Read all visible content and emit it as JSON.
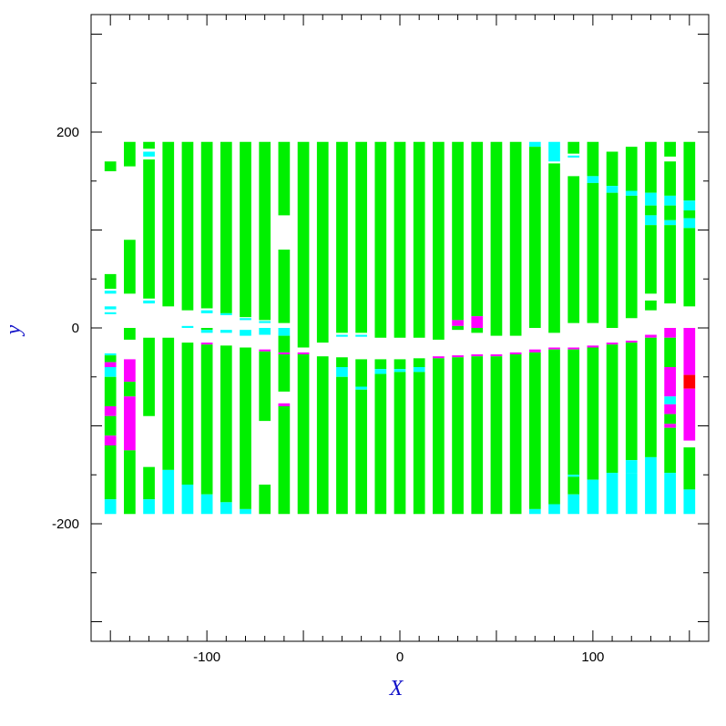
{
  "chart_data": {
    "type": "bar",
    "xlabel": "X",
    "ylabel": "y",
    "xlim": [
      -160,
      160
    ],
    "ylim": [
      -320,
      320
    ],
    "x_ticks": [
      {
        "value": -100,
        "label": "-100"
      },
      {
        "value": 0,
        "label": "0"
      },
      {
        "value": 100,
        "label": "100"
      }
    ],
    "y_ticks": [
      {
        "value": 200,
        "label": "200"
      },
      {
        "value": 0,
        "label": "0"
      },
      {
        "value": -200,
        "label": "-200"
      }
    ],
    "grid": false,
    "legend": "none",
    "colors": {
      "green": "#00f000",
      "cyan": "#00ffff",
      "magenta": "#ff00ff",
      "red": "#ff0000",
      "axis_label": "#1010c8",
      "frame": "#000000"
    },
    "column_width": 6,
    "columns": [
      {
        "x": -150,
        "segments": [
          [
            170,
            160,
            "green"
          ],
          [
            55,
            40,
            "green"
          ],
          [
            38,
            35,
            "cyan"
          ],
          [
            22,
            19,
            "cyan"
          ],
          [
            16,
            14,
            "cyan"
          ],
          [
            -26,
            -28,
            "cyan"
          ],
          [
            -28,
            -35,
            "green"
          ],
          [
            -35,
            -40,
            "magenta"
          ],
          [
            -40,
            -50,
            "cyan"
          ],
          [
            -50,
            -80,
            "green"
          ],
          [
            -80,
            -90,
            "magenta"
          ],
          [
            -90,
            -110,
            "green"
          ],
          [
            -110,
            -120,
            "magenta"
          ],
          [
            -120,
            -175,
            "green"
          ],
          [
            -175,
            -190,
            "cyan"
          ]
        ]
      },
      {
        "x": -140,
        "segments": [
          [
            190,
            165,
            "green"
          ],
          [
            90,
            35,
            "green"
          ],
          [
            0,
            -12,
            "green"
          ],
          [
            -32,
            -55,
            "magenta"
          ],
          [
            -55,
            -70,
            "green"
          ],
          [
            -70,
            -125,
            "magenta"
          ],
          [
            -125,
            -190,
            "green"
          ]
        ]
      },
      {
        "x": -130,
        "segments": [
          [
            190,
            183,
            "green"
          ],
          [
            180,
            175,
            "cyan"
          ],
          [
            172,
            30,
            "green"
          ],
          [
            28,
            25,
            "cyan"
          ],
          [
            -10,
            -90,
            "green"
          ],
          [
            -142,
            -175,
            "green"
          ],
          [
            -175,
            -190,
            "cyan"
          ]
        ]
      },
      {
        "x": -120,
        "segments": [
          [
            190,
            22,
            "green"
          ],
          [
            -10,
            -145,
            "green"
          ],
          [
            -145,
            -190,
            "cyan"
          ]
        ]
      },
      {
        "x": -110,
        "segments": [
          [
            190,
            18,
            "green"
          ],
          [
            2,
            0,
            "cyan"
          ],
          [
            -15,
            -160,
            "green"
          ],
          [
            -160,
            -190,
            "cyan"
          ]
        ]
      },
      {
        "x": -100,
        "segments": [
          [
            190,
            20,
            "green"
          ],
          [
            18,
            15,
            "cyan"
          ],
          [
            0,
            -2,
            "green"
          ],
          [
            -2,
            -5,
            "cyan"
          ],
          [
            -15,
            -17,
            "magenta"
          ],
          [
            -17,
            -170,
            "green"
          ],
          [
            -170,
            -190,
            "cyan"
          ]
        ]
      },
      {
        "x": -90,
        "segments": [
          [
            190,
            15,
            "green"
          ],
          [
            15,
            13,
            "cyan"
          ],
          [
            -2,
            -5,
            "cyan"
          ],
          [
            -18,
            -178,
            "green"
          ],
          [
            -178,
            -190,
            "cyan"
          ]
        ]
      },
      {
        "x": -80,
        "segments": [
          [
            190,
            11,
            "green"
          ],
          [
            10,
            8,
            "cyan"
          ],
          [
            -2,
            -8,
            "cyan"
          ],
          [
            -20,
            -185,
            "green"
          ],
          [
            -185,
            -190,
            "cyan"
          ]
        ]
      },
      {
        "x": -70,
        "segments": [
          [
            190,
            8,
            "green"
          ],
          [
            7,
            5,
            "cyan"
          ],
          [
            0,
            -7,
            "cyan"
          ],
          [
            -22,
            -24,
            "magenta"
          ],
          [
            -24,
            -95,
            "green"
          ],
          [
            -160,
            -190,
            "green"
          ]
        ]
      },
      {
        "x": -60,
        "segments": [
          [
            190,
            115,
            "green"
          ],
          [
            80,
            5,
            "green"
          ],
          [
            0,
            -8,
            "cyan"
          ],
          [
            -8,
            -25,
            "green"
          ],
          [
            -25,
            -27,
            "magenta"
          ],
          [
            -27,
            -65,
            "green"
          ],
          [
            -77,
            -80,
            "magenta"
          ],
          [
            -80,
            -190,
            "green"
          ]
        ]
      },
      {
        "x": -50,
        "segments": [
          [
            190,
            -20,
            "green"
          ],
          [
            -25,
            -27,
            "magenta"
          ],
          [
            -27,
            -190,
            "green"
          ]
        ]
      },
      {
        "x": -40,
        "segments": [
          [
            190,
            -15,
            "green"
          ],
          [
            -29,
            -190,
            "green"
          ]
        ]
      },
      {
        "x": -30,
        "segments": [
          [
            190,
            -5,
            "green"
          ],
          [
            -7,
            -9,
            "cyan"
          ],
          [
            -30,
            -40,
            "green"
          ],
          [
            -40,
            -50,
            "cyan"
          ],
          [
            -50,
            -190,
            "green"
          ]
        ]
      },
      {
        "x": -20,
        "segments": [
          [
            190,
            -5,
            "green"
          ],
          [
            -7,
            -9,
            "cyan"
          ],
          [
            -32,
            -60,
            "green"
          ],
          [
            -60,
            -63,
            "cyan"
          ],
          [
            -63,
            -190,
            "green"
          ]
        ]
      },
      {
        "x": -10,
        "segments": [
          [
            190,
            -10,
            "green"
          ],
          [
            -32,
            -42,
            "green"
          ],
          [
            -42,
            -47,
            "cyan"
          ],
          [
            -47,
            -190,
            "green"
          ]
        ]
      },
      {
        "x": 0,
        "segments": [
          [
            190,
            -10,
            "green"
          ],
          [
            -32,
            -42,
            "green"
          ],
          [
            -42,
            -45,
            "cyan"
          ],
          [
            -45,
            -190,
            "green"
          ]
        ]
      },
      {
        "x": 10,
        "segments": [
          [
            190,
            -10,
            "green"
          ],
          [
            -31,
            -40,
            "green"
          ],
          [
            -40,
            -45,
            "cyan"
          ],
          [
            -45,
            -190,
            "green"
          ]
        ]
      },
      {
        "x": 20,
        "segments": [
          [
            190,
            -12,
            "green"
          ],
          [
            -29,
            -31,
            "magenta"
          ],
          [
            -31,
            -190,
            "green"
          ]
        ]
      },
      {
        "x": 30,
        "segments": [
          [
            190,
            8,
            "green"
          ],
          [
            8,
            2,
            "magenta"
          ],
          [
            2,
            -2,
            "green"
          ],
          [
            -28,
            -30,
            "magenta"
          ],
          [
            -30,
            -190,
            "green"
          ]
        ]
      },
      {
        "x": 40,
        "segments": [
          [
            190,
            12,
            "green"
          ],
          [
            12,
            0,
            "magenta"
          ],
          [
            0,
            -5,
            "green"
          ],
          [
            -27,
            -29,
            "magenta"
          ],
          [
            -29,
            -190,
            "green"
          ]
        ]
      },
      {
        "x": 50,
        "segments": [
          [
            190,
            -8,
            "green"
          ],
          [
            -27,
            -29,
            "magenta"
          ],
          [
            -29,
            -190,
            "green"
          ]
        ]
      },
      {
        "x": 60,
        "segments": [
          [
            190,
            -8,
            "green"
          ],
          [
            -25,
            -27,
            "magenta"
          ],
          [
            -27,
            -190,
            "green"
          ]
        ]
      },
      {
        "x": 70,
        "segments": [
          [
            190,
            185,
            "cyan"
          ],
          [
            185,
            0,
            "green"
          ],
          [
            -22,
            -25,
            "magenta"
          ],
          [
            -25,
            -185,
            "green"
          ],
          [
            -185,
            -190,
            "cyan"
          ]
        ]
      },
      {
        "x": 80,
        "segments": [
          [
            190,
            180,
            "cyan"
          ],
          [
            180,
            170,
            "cyan"
          ],
          [
            168,
            -5,
            "green"
          ],
          [
            -20,
            -22,
            "magenta"
          ],
          [
            -22,
            -180,
            "green"
          ],
          [
            -180,
            -190,
            "cyan"
          ]
        ]
      },
      {
        "x": 90,
        "segments": [
          [
            190,
            178,
            "green"
          ],
          [
            176,
            174,
            "cyan"
          ],
          [
            155,
            5,
            "green"
          ],
          [
            -20,
            -22,
            "magenta"
          ],
          [
            -22,
            -150,
            "green"
          ],
          [
            -150,
            -152,
            "cyan"
          ],
          [
            -152,
            -170,
            "green"
          ],
          [
            -170,
            -190,
            "cyan"
          ]
        ]
      },
      {
        "x": 100,
        "segments": [
          [
            190,
            155,
            "green"
          ],
          [
            155,
            148,
            "cyan"
          ],
          [
            148,
            5,
            "green"
          ],
          [
            -18,
            -20,
            "magenta"
          ],
          [
            -20,
            -155,
            "green"
          ],
          [
            -155,
            -160,
            "cyan"
          ],
          [
            -160,
            -190,
            "cyan"
          ]
        ]
      },
      {
        "x": 110,
        "segments": [
          [
            180,
            145,
            "green"
          ],
          [
            145,
            138,
            "cyan"
          ],
          [
            138,
            0,
            "green"
          ],
          [
            -15,
            -17,
            "magenta"
          ],
          [
            -17,
            -140,
            "green"
          ],
          [
            -140,
            -148,
            "green"
          ],
          [
            -148,
            -190,
            "cyan"
          ]
        ]
      },
      {
        "x": 120,
        "segments": [
          [
            185,
            140,
            "green"
          ],
          [
            140,
            135,
            "cyan"
          ],
          [
            135,
            10,
            "green"
          ],
          [
            -13,
            -15,
            "magenta"
          ],
          [
            -15,
            -135,
            "green"
          ],
          [
            -135,
            -148,
            "cyan"
          ],
          [
            -148,
            -190,
            "cyan"
          ]
        ]
      },
      {
        "x": 130,
        "segments": [
          [
            190,
            138,
            "green"
          ],
          [
            138,
            125,
            "cyan"
          ],
          [
            125,
            115,
            "green"
          ],
          [
            115,
            105,
            "cyan"
          ],
          [
            105,
            35,
            "green"
          ],
          [
            28,
            18,
            "green"
          ],
          [
            -7,
            -10,
            "magenta"
          ],
          [
            -10,
            -132,
            "green"
          ],
          [
            -132,
            -190,
            "cyan"
          ]
        ]
      },
      {
        "x": 140,
        "segments": [
          [
            190,
            175,
            "green"
          ],
          [
            170,
            135,
            "green"
          ],
          [
            135,
            125,
            "cyan"
          ],
          [
            125,
            110,
            "green"
          ],
          [
            110,
            105,
            "cyan"
          ],
          [
            105,
            25,
            "green"
          ],
          [
            0,
            -10,
            "magenta"
          ],
          [
            -10,
            -40,
            "green"
          ],
          [
            -40,
            -70,
            "magenta"
          ],
          [
            -70,
            -78,
            "cyan"
          ],
          [
            -78,
            -88,
            "magenta"
          ],
          [
            -88,
            -98,
            "green"
          ],
          [
            -98,
            -102,
            "magenta"
          ],
          [
            -102,
            -148,
            "green"
          ],
          [
            -148,
            -190,
            "cyan"
          ]
        ]
      },
      {
        "x": 150,
        "segments": [
          [
            190,
            130,
            "green"
          ],
          [
            130,
            120,
            "cyan"
          ],
          [
            120,
            112,
            "green"
          ],
          [
            112,
            102,
            "cyan"
          ],
          [
            102,
            22,
            "green"
          ],
          [
            0,
            -48,
            "magenta"
          ],
          [
            -48,
            -62,
            "red"
          ],
          [
            -62,
            -115,
            "magenta"
          ],
          [
            -122,
            -165,
            "green"
          ],
          [
            -165,
            -190,
            "cyan"
          ]
        ]
      }
    ]
  }
}
